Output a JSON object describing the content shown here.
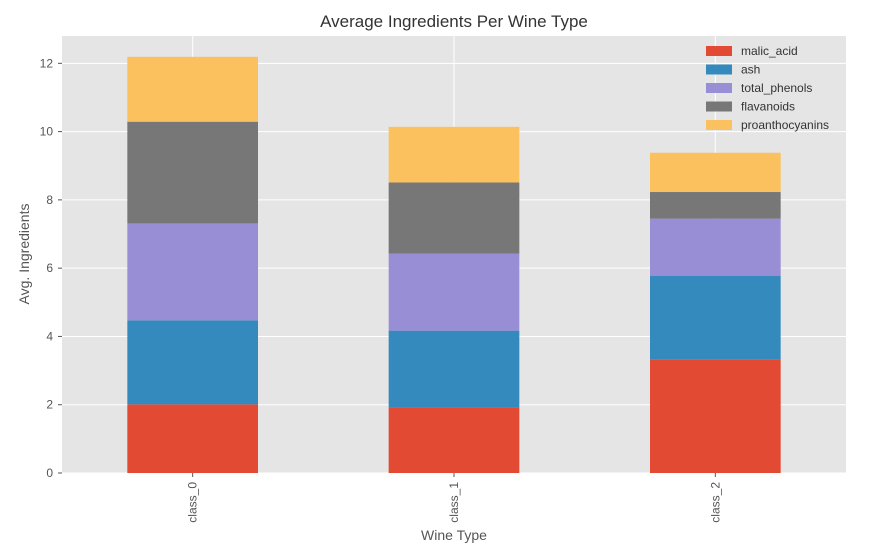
{
  "chart_data": {
    "type": "bar",
    "stacked": true,
    "title": "Average Ingredients Per Wine Type",
    "xlabel": "Wine Type",
    "ylabel": "Avg. Ingredients",
    "categories": [
      "class_0",
      "class_1",
      "class_2"
    ],
    "ylim": [
      0,
      12.8
    ],
    "yticks": [
      0,
      2,
      4,
      6,
      8,
      10,
      12
    ],
    "grid": true,
    "legend_position": "top-right",
    "series": [
      {
        "name": "malic_acid",
        "color": "#E24A33",
        "values": [
          2.01,
          1.93,
          3.33
        ]
      },
      {
        "name": "ash",
        "color": "#348ABD",
        "values": [
          2.46,
          2.24,
          2.44
        ]
      },
      {
        "name": "total_phenols",
        "color": "#988ED5",
        "values": [
          2.84,
          2.26,
          1.68
        ]
      },
      {
        "name": "flavanoids",
        "color": "#777777",
        "values": [
          2.98,
          2.08,
          0.78
        ]
      },
      {
        "name": "proanthocyanins",
        "color": "#FBC15E",
        "values": [
          1.9,
          1.63,
          1.15
        ]
      }
    ]
  }
}
